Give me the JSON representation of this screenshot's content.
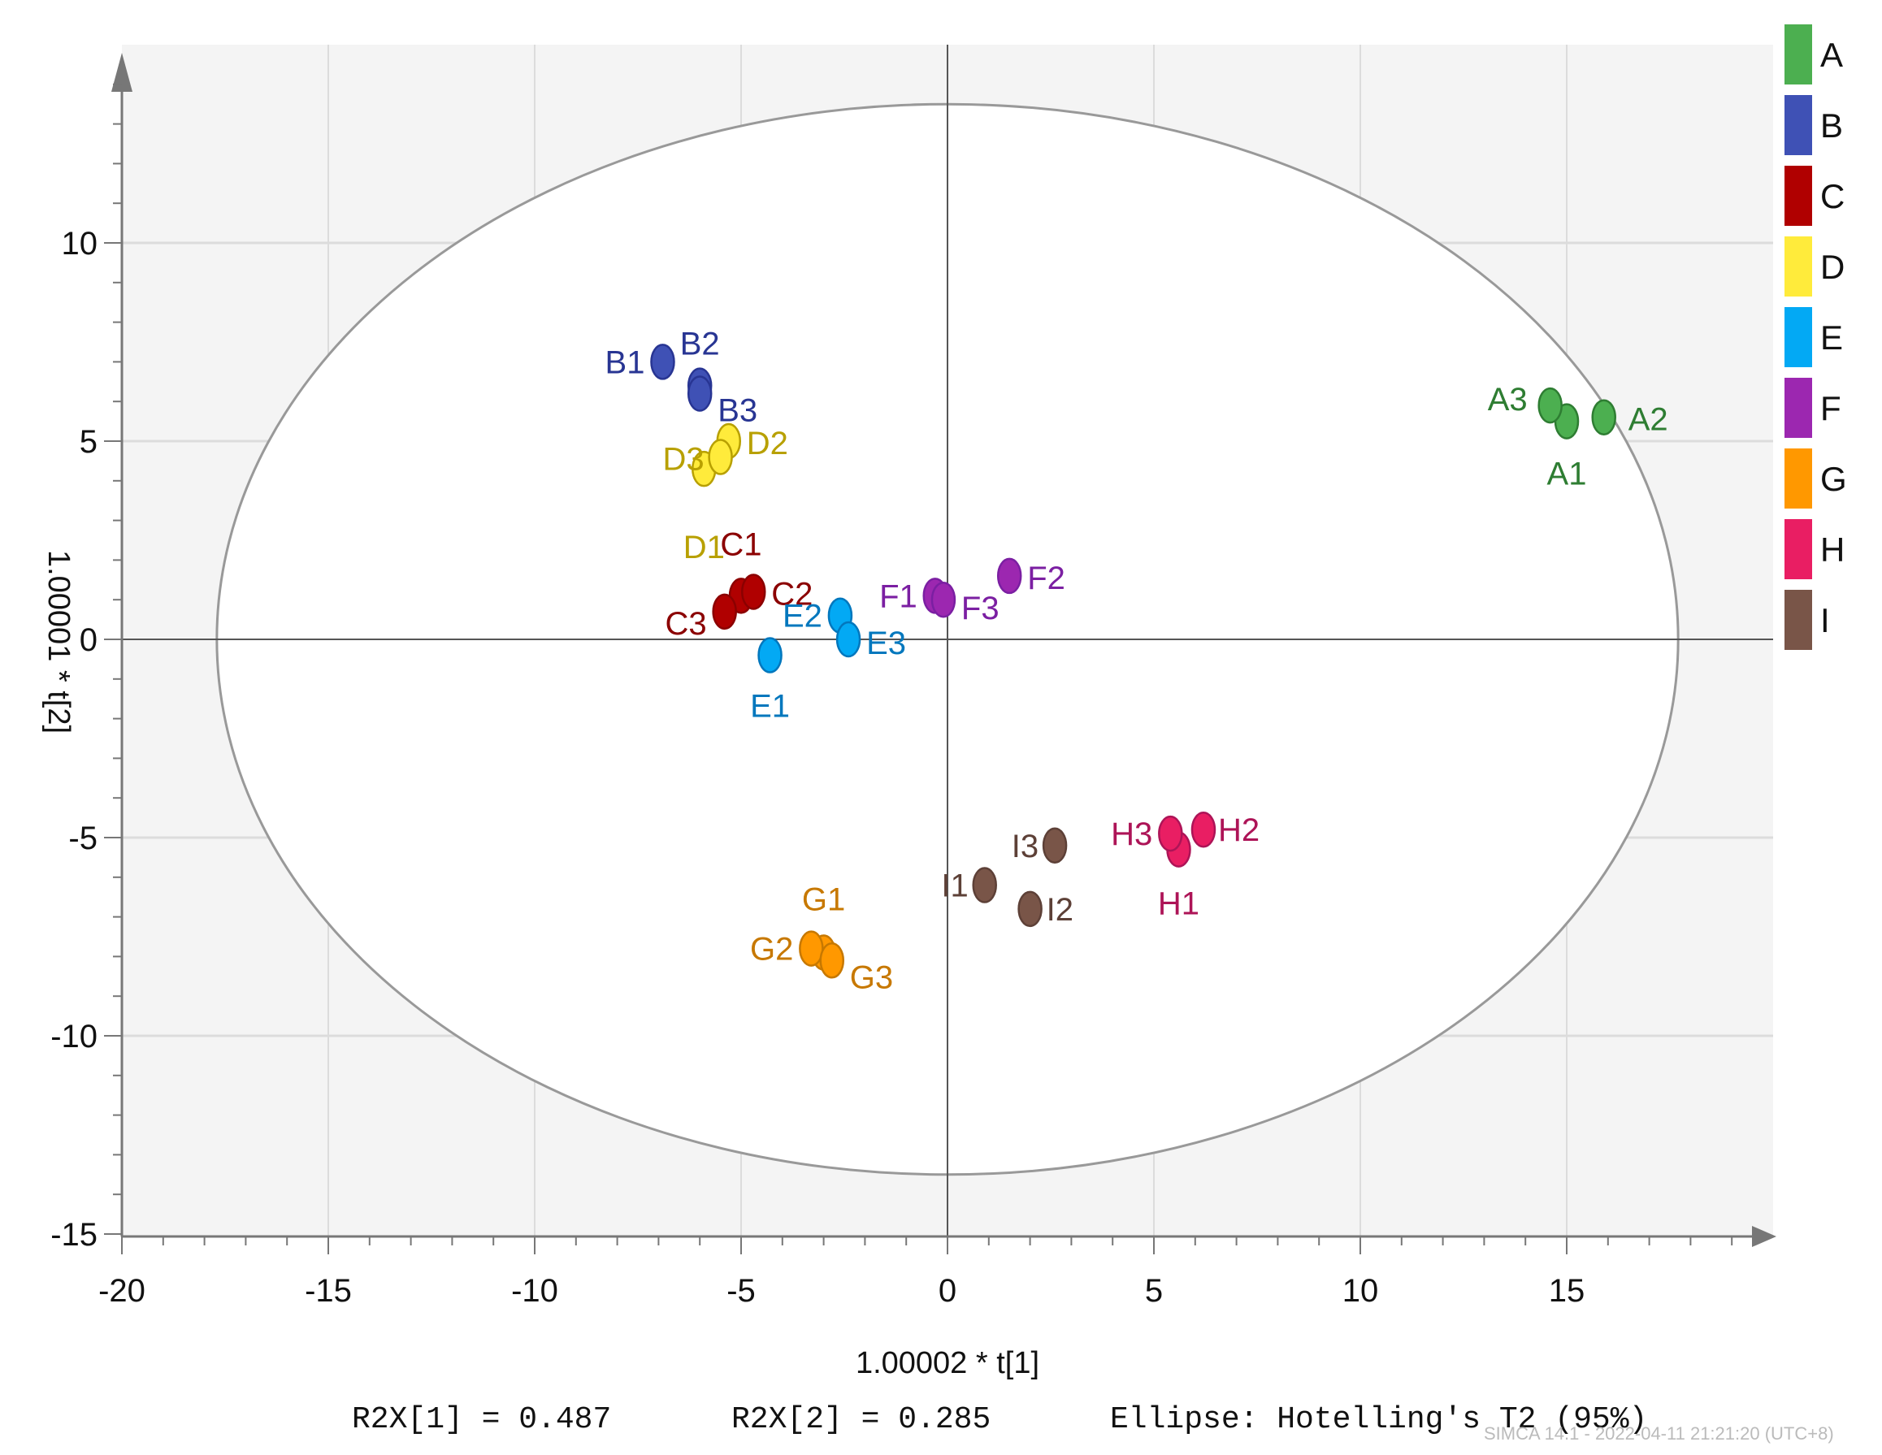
{
  "chart_data": {
    "type": "scatter",
    "title": "",
    "xlabel": "1.00002 * t[1]",
    "ylabel": "1.00001 * t[2]",
    "xlim": [
      -20,
      20
    ],
    "ylim": [
      -15,
      15
    ],
    "xticks": [
      -20,
      -15,
      -10,
      -5,
      0,
      5,
      10,
      15
    ],
    "yticks": [
      -15,
      -10,
      -5,
      0,
      5,
      10
    ],
    "ellipse": {
      "label": "Hotelling's T2 (95%)",
      "rx": 17.7,
      "ry": 13.5
    },
    "series": [
      {
        "name": "A",
        "color": "#4CAF50",
        "labelColor": "#2E7D32",
        "points": [
          {
            "label": "A1",
            "x": 15.0,
            "y": 5.5
          },
          {
            "label": "A2",
            "x": 15.9,
            "y": 5.6
          },
          {
            "label": "A3",
            "x": 14.6,
            "y": 5.9
          }
        ]
      },
      {
        "name": "B",
        "color": "#3F51B5",
        "labelColor": "#283593",
        "points": [
          {
            "label": "B1",
            "x": -6.9,
            "y": 7.0
          },
          {
            "label": "B2",
            "x": -6.0,
            "y": 6.4
          },
          {
            "label": "B3",
            "x": -6.0,
            "y": 6.2
          }
        ]
      },
      {
        "name": "C",
        "color": "#B00000",
        "labelColor": "#8B0000",
        "points": [
          {
            "label": "C1",
            "x": -5.0,
            "y": 1.1
          },
          {
            "label": "C2",
            "x": -4.7,
            "y": 1.2
          },
          {
            "label": "C3",
            "x": -5.4,
            "y": 0.7
          }
        ]
      },
      {
        "name": "D",
        "color": "#FFEB3B",
        "labelColor": "#B8A000",
        "points": [
          {
            "label": "D1",
            "x": -5.9,
            "y": 4.3
          },
          {
            "label": "D2",
            "x": -5.3,
            "y": 5.0
          },
          {
            "label": "D3",
            "x": -5.5,
            "y": 4.6
          }
        ]
      },
      {
        "name": "E",
        "color": "#03A9F4",
        "labelColor": "#0277BD",
        "points": [
          {
            "label": "E1",
            "x": -4.3,
            "y": -0.4
          },
          {
            "label": "E2",
            "x": -2.6,
            "y": 0.6
          },
          {
            "label": "E3",
            "x": -2.4,
            "y": 0.0
          }
        ]
      },
      {
        "name": "F",
        "color": "#9C27B0",
        "labelColor": "#7B1FA2",
        "points": [
          {
            "label": "F1",
            "x": -0.3,
            "y": 1.1
          },
          {
            "label": "F2",
            "x": 1.5,
            "y": 1.6
          },
          {
            "label": "F3",
            "x": -0.1,
            "y": 1.0
          }
        ]
      },
      {
        "name": "G",
        "color": "#FF9800",
        "labelColor": "#C77800",
        "points": [
          {
            "label": "G1",
            "x": -3.0,
            "y": -7.9
          },
          {
            "label": "G2",
            "x": -3.3,
            "y": -7.8
          },
          {
            "label": "G3",
            "x": -2.8,
            "y": -8.1
          }
        ]
      },
      {
        "name": "H",
        "color": "#E91E63",
        "labelColor": "#AD1457",
        "points": [
          {
            "label": "H1",
            "x": 5.6,
            "y": -5.3
          },
          {
            "label": "H2",
            "x": 6.2,
            "y": -4.8
          },
          {
            "label": "H3",
            "x": 5.4,
            "y": -4.9
          }
        ]
      },
      {
        "name": "I",
        "color": "#795548",
        "labelColor": "#5D4037",
        "points": [
          {
            "label": "I1",
            "x": 0.9,
            "y": -6.2
          },
          {
            "label": "I2",
            "x": 2.0,
            "y": -6.8
          },
          {
            "label": "I3",
            "x": 2.6,
            "y": -5.2
          }
        ]
      }
    ]
  },
  "footer": {
    "r2x1": "R2X[1] = 0.487",
    "r2x2": "R2X[2] = 0.285",
    "ellipse": "Ellipse: Hotelling's T2 (95%)",
    "stamp": "SIMCA 14.1 - 2022-04-11 21:21:20 (UTC+8)"
  }
}
